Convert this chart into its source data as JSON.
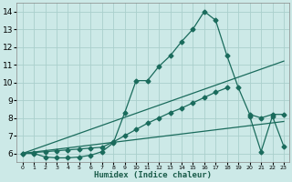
{
  "xlabel": "Humidex (Indice chaleur)",
  "xlim": [
    -0.5,
    23.5
  ],
  "ylim": [
    5.5,
    14.5
  ],
  "xticks": [
    0,
    1,
    2,
    3,
    4,
    5,
    6,
    7,
    8,
    9,
    10,
    11,
    12,
    13,
    14,
    15,
    16,
    17,
    18,
    19,
    20,
    21,
    22,
    23
  ],
  "yticks": [
    6,
    7,
    8,
    9,
    10,
    11,
    12,
    13,
    14
  ],
  "bg_color": "#cce9e7",
  "grid_color": "#aacfcc",
  "line_color": "#1a6b5c",
  "line1_x": [
    0,
    1,
    2,
    3,
    4,
    5,
    6,
    7,
    8,
    9,
    10,
    11,
    12,
    13,
    14,
    15,
    16,
    17,
    18,
    19,
    20,
    21,
    22,
    23
  ],
  "line1_y": [
    6.0,
    6.0,
    5.8,
    5.75,
    5.75,
    5.8,
    5.9,
    6.1,
    6.6,
    8.3,
    10.1,
    10.1,
    10.9,
    11.5,
    12.3,
    13.0,
    14.0,
    13.5,
    11.5,
    9.7,
    8.2,
    8.0,
    8.2,
    8.2
  ],
  "line2_x": [
    0,
    1,
    2,
    3,
    4,
    5,
    6,
    7,
    8,
    9,
    10,
    11,
    12,
    13,
    14,
    15,
    16,
    17,
    18
  ],
  "line2_y": [
    6.0,
    6.05,
    6.1,
    6.15,
    6.2,
    6.25,
    6.3,
    6.35,
    6.65,
    7.0,
    7.35,
    7.7,
    8.0,
    8.3,
    8.55,
    8.85,
    9.15,
    9.45,
    9.7
  ],
  "line3_x": [
    0,
    23
  ],
  "line3_y": [
    6.0,
    11.2
  ],
  "line4_x": [
    0,
    23
  ],
  "line4_y": [
    6.0,
    7.8
  ],
  "line5_x": [
    20,
    21,
    22,
    23
  ],
  "line5_y": [
    8.1,
    6.1,
    8.1,
    6.4
  ],
  "markersize": 2.5,
  "linewidth": 0.9
}
